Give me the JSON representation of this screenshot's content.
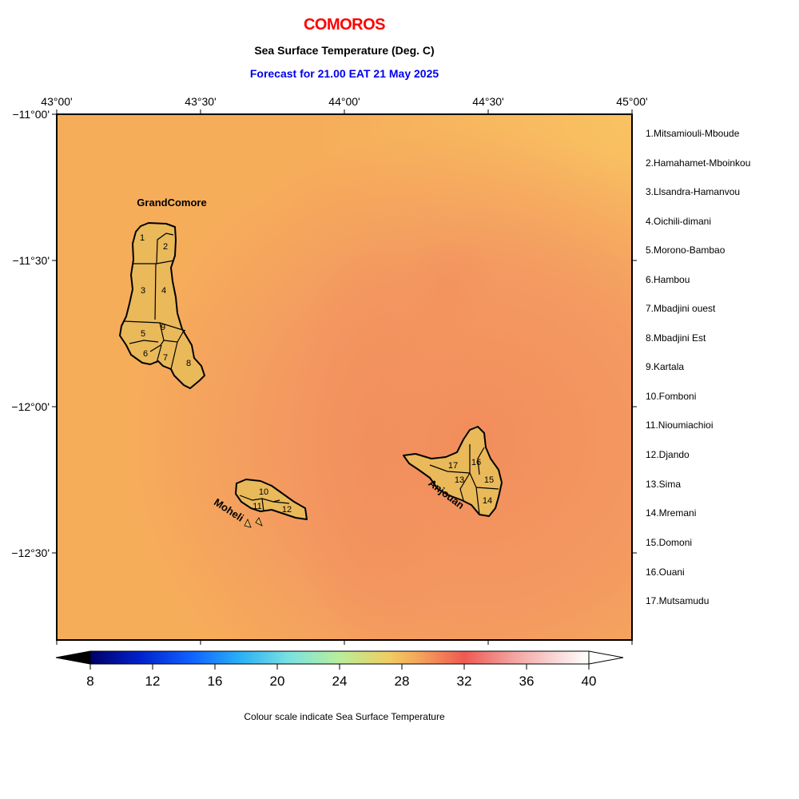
{
  "header": {
    "country": "COMOROS",
    "subtitle": "Sea Surface Temperature (Deg. C)",
    "forecast": "Forecast for  21.00 EAT 21 May 2025"
  },
  "axes": {
    "lon_ticks": [
      "43°00'",
      "43°30'",
      "44°00'",
      "44°30'",
      "45°00'"
    ],
    "lat_ticks": [
      "−11°00'",
      "−11°30'",
      "−12°00'",
      "−12°30'"
    ]
  },
  "islands": {
    "grand_comore": "GrandComore",
    "moheli": "Moheli",
    "anjouan": "Anjouan"
  },
  "municipalities": [
    {
      "num": "1",
      "label": "1.Mitsamiouli-Mboude"
    },
    {
      "num": "2",
      "label": "2.Hamahamet-Mboinkou"
    },
    {
      "num": "3",
      "label": "3.Llsandra-Hamanvou"
    },
    {
      "num": "4",
      "label": "4.Oichili-dimani"
    },
    {
      "num": "5",
      "label": "5.Morono-Bambao"
    },
    {
      "num": "6",
      "label": "6.Hambou"
    },
    {
      "num": "7",
      "label": "7.Mbadjini ouest"
    },
    {
      "num": "8",
      "label": "8.Mbadjini Est"
    },
    {
      "num": "9",
      "label": "9.Kartala"
    },
    {
      "num": "10",
      "label": "10.Fomboni"
    },
    {
      "num": "11",
      "label": "11.Nioumiachioi"
    },
    {
      "num": "12",
      "label": "12.Djando"
    },
    {
      "num": "13",
      "label": "13.Sima"
    },
    {
      "num": "14",
      "label": "14.Mremani"
    },
    {
      "num": "15",
      "label": "15.Domoni"
    },
    {
      "num": "16",
      "label": "16.Ouani"
    },
    {
      "num": "17",
      "label": "17.Mutsamudu"
    }
  ],
  "colorbar": {
    "ticks": [
      "8",
      "12",
      "16",
      "20",
      "24",
      "28",
      "32",
      "36",
      "40"
    ],
    "caption": "Colour scale indicate Sea Surface Temperature"
  },
  "colors": {
    "sea_base": "#f6ad5a",
    "sea_warm": "#f39360",
    "sea_cool": "#f8c062",
    "land": "#e9b95a",
    "title_red": "#ff0000",
    "title_blue": "#0000ee"
  }
}
